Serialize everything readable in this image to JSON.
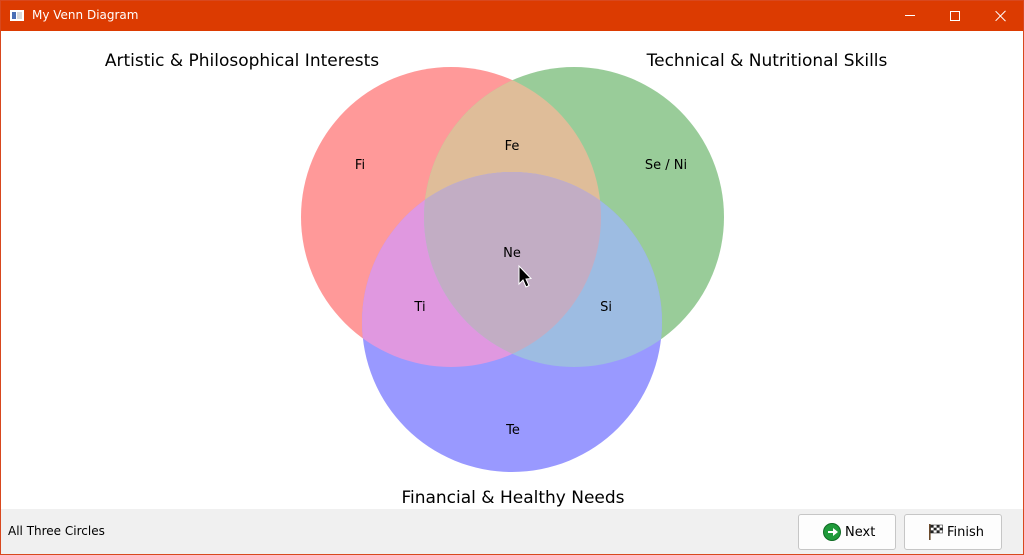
{
  "window": {
    "title": "My Venn Diagram"
  },
  "venn": {
    "circles": [
      {
        "label": "Artistic & Philosophical Interests",
        "color": "#ff9999"
      },
      {
        "label": "Technical & Nutritional Skills",
        "color": "#99cc99"
      },
      {
        "label": "Financial & Healthy Needs",
        "color": "#9999ff"
      }
    ],
    "regions": {
      "only_1": "Fi",
      "only_2": "Se / Ni",
      "only_3": "Te",
      "1_2": "Fe",
      "1_3": "Ti",
      "2_3": "Si",
      "all": "Ne"
    },
    "region_colors": {
      "1_2": "#dfbd99",
      "1_3": "#e098e0",
      "2_3": "#9dbce2",
      "all": "#c2adc4"
    }
  },
  "statusbar": {
    "status": "All Three Circles",
    "next_label": "Next",
    "finish_label": "Finish"
  }
}
